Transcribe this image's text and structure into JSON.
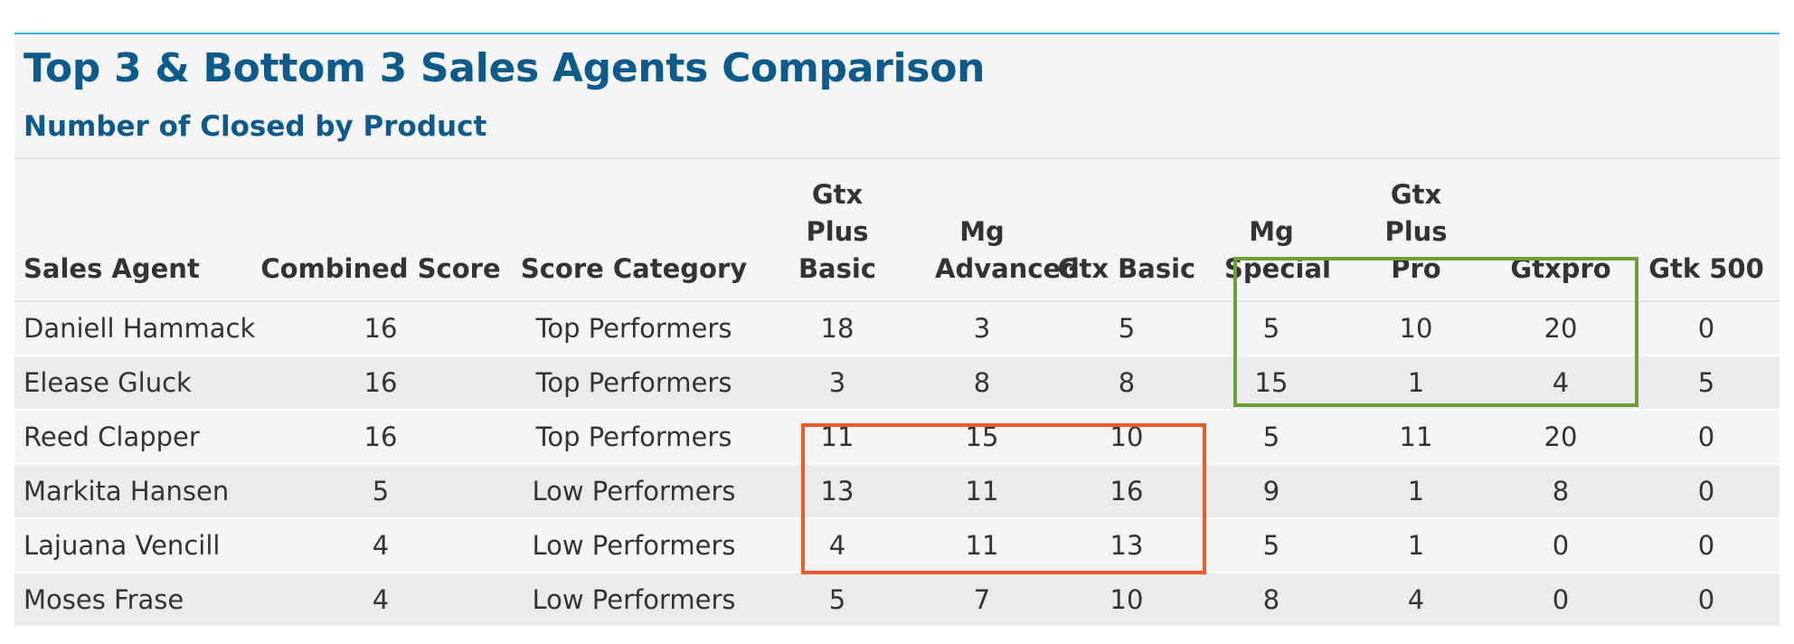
{
  "title": "Top 3 & Bottom 3 Sales Agents Comparison",
  "subtitle": "Number of Closed by Product",
  "columns": [
    "Sales Agent",
    "Combined Score",
    "Score Category",
    "Gtx Plus Basic",
    "Mg Advanced",
    "Gtx Basic",
    "Mg Special",
    "Gtx Plus Pro",
    "Gtxpro",
    "Gtk 500"
  ],
  "rows": [
    [
      "Daniell Hammack",
      "16",
      "Top Performers",
      "18",
      "3",
      "5",
      "5",
      "10",
      "20",
      "0"
    ],
    [
      "Elease Gluck",
      "16",
      "Top Performers",
      "3",
      "8",
      "8",
      "15",
      "1",
      "4",
      "5"
    ],
    [
      "Reed Clapper",
      "16",
      "Top Performers",
      "11",
      "15",
      "10",
      "5",
      "11",
      "20",
      "0"
    ],
    [
      "Markita Hansen",
      "5",
      "Low Performers",
      "13",
      "11",
      "16",
      "9",
      "1",
      "8",
      "0"
    ],
    [
      "Lajuana Vencill",
      "4",
      "Low Performers",
      "4",
      "11",
      "13",
      "5",
      "1",
      "0",
      "0"
    ],
    [
      "Moses Frase",
      "4",
      "Low Performers",
      "5",
      "7",
      "10",
      "8",
      "4",
      "0",
      "0"
    ]
  ],
  "highlight_colors": {
    "top_group": "#6a9f3c",
    "bottom_group": "#ea5a2b"
  }
}
